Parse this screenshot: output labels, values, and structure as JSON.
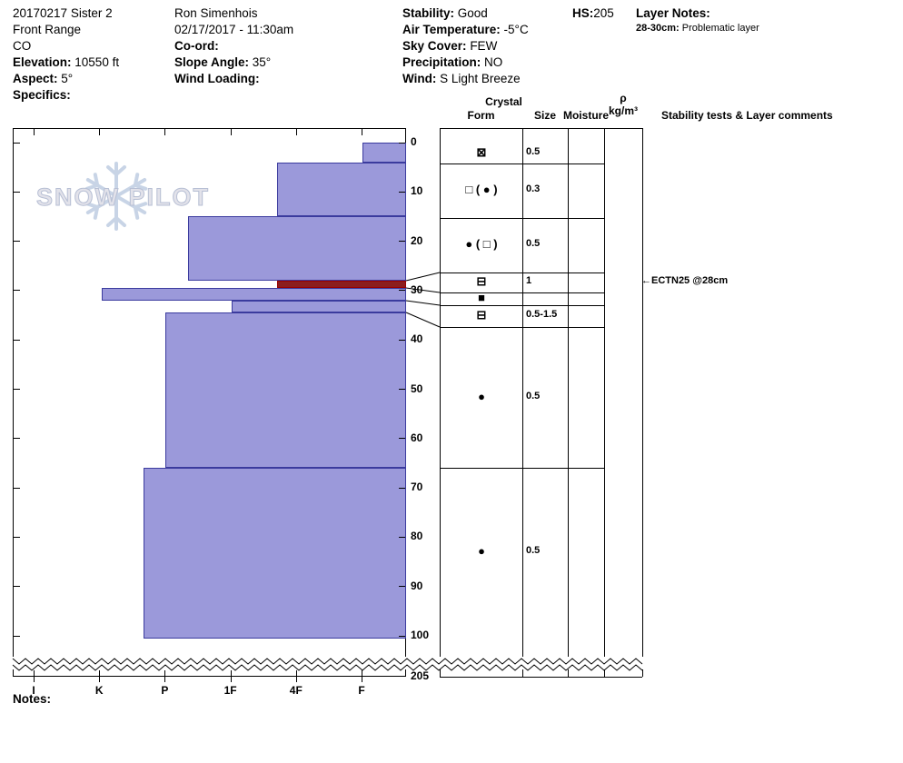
{
  "header": {
    "pit_name": "20170217 Sister 2",
    "range": "Front Range",
    "state": "CO",
    "elevation": {
      "label": "Elevation:",
      "value": "10550 ft"
    },
    "aspect": {
      "label": "Aspect:",
      "value": "5°"
    },
    "specifics": {
      "label": "Specifics:",
      "value": ""
    },
    "observer": "Ron Simenhois",
    "datetime": "02/17/2017 - 11:30am",
    "coord": {
      "label": "Co-ord:",
      "value": ""
    },
    "slope_angle": {
      "label": "Slope Angle:",
      "value": "35°"
    },
    "wind_loading": {
      "label": "Wind Loading:",
      "value": ""
    },
    "stability": {
      "label": "Stability:",
      "value": "Good"
    },
    "air_temperature": {
      "label": "Air Temperature:",
      "value": "-5°C"
    },
    "sky_cover": {
      "label": "Sky Cover:",
      "value": "FEW"
    },
    "precipitation": {
      "label": "Precipitation:",
      "value": "NO"
    },
    "wind": {
      "label": "Wind:",
      "value": "S Light Breeze"
    },
    "hs": {
      "label": "HS:",
      "value": "205"
    },
    "layer_notes": {
      "label": "Layer Notes:",
      "note_depth": "28-30cm:",
      "note_text": "Problematic layer"
    }
  },
  "watermark": {
    "text": "SNOW PILOT"
  },
  "profile_table": {
    "crystal_header": "Crystal",
    "form_header": "Form",
    "size_header": "Size",
    "moisture_header": "Moisture",
    "density_symbol": "ρ",
    "density_unit": "kg/m³",
    "comments_header": "Stability tests & Layer comments"
  },
  "annotations": {
    "ect": {
      "arrow": "←",
      "text": "ECTN25 @28cm",
      "depth_cm": 28
    }
  },
  "notes": {
    "label": "Notes:"
  },
  "style": {
    "bar_fill": "#9b99da",
    "bar_border": "#3b3b9e",
    "problem_fill": "#8b1e1e",
    "problem_border": "#990000",
    "line_color": "#000000",
    "watermark_text_color": "#e2e2ea",
    "watermark_snowflake_color": "#bfcde2"
  },
  "chart_data": {
    "type": "bar",
    "orientation": "horizontal-hardness-profile",
    "title": "Snow pit hardness profile",
    "depth_axis": {
      "unit": "cm",
      "ticks": [
        0,
        10,
        20,
        30,
        40,
        50,
        60,
        70,
        80,
        90,
        100
      ],
      "break_bottom_label": "205",
      "total_depth_cm": 205
    },
    "hardness_axis": {
      "categories": [
        "I",
        "K",
        "P",
        "1F",
        "4F",
        "F"
      ],
      "note": "hardest (I) at left, softest (F) at right; bars grow leftward from right edge"
    },
    "layers": [
      {
        "top_cm": 0,
        "bottom_cm": 4,
        "hardness": "F",
        "hardness_code": 5.02,
        "form": "⊠",
        "grain_size_mm": "0.5",
        "moisture": ""
      },
      {
        "top_cm": 4,
        "bottom_cm": 15,
        "hardness": "4F+",
        "hardness_code": 3.71,
        "form": "□ ( ● )",
        "grain_size_mm": "0.3",
        "moisture": ""
      },
      {
        "top_cm": 15,
        "bottom_cm": 28,
        "hardness": "P-",
        "hardness_code": 2.35,
        "form": "● ( □ )",
        "grain_size_mm": "0.5",
        "moisture": ""
      },
      {
        "top_cm": 28,
        "bottom_cm": 29.5,
        "hardness": "4F+",
        "hardness_code": 3.71,
        "form": "⊟",
        "grain_size_mm": "1",
        "moisture": "",
        "flag": "problematic",
        "color": "#8b1e1e",
        "border": "#990000"
      },
      {
        "top_cm": 29.5,
        "bottom_cm": 32,
        "hardness": "K",
        "hardness_code": 1.04,
        "form": "■",
        "grain_size_mm": "",
        "moisture": ""
      },
      {
        "top_cm": 32,
        "bottom_cm": 34.5,
        "hardness": "1F",
        "hardness_code": 3.02,
        "form": "⊟",
        "grain_size_mm": "0.5-1.5",
        "moisture": ""
      },
      {
        "top_cm": 34.5,
        "bottom_cm": 66,
        "hardness": "P",
        "hardness_code": 2.01,
        "form": "●",
        "grain_size_mm": "0.5",
        "moisture": ""
      },
      {
        "top_cm": 66,
        "bottom_cm": 100.6,
        "hardness": "P+",
        "hardness_code": 1.68,
        "form": "●",
        "grain_size_mm": "0.5",
        "moisture": ""
      }
    ],
    "stability_tests": [
      {
        "result": "ECTN25",
        "depth_cm": 28,
        "label": "ECTN25 @28cm"
      }
    ]
  }
}
